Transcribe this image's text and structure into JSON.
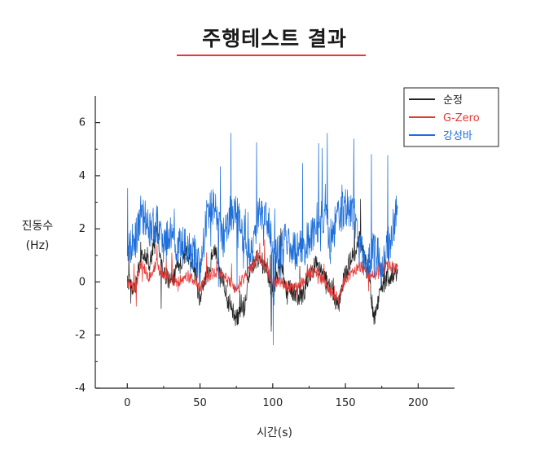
{
  "page": {
    "title": "주행테스트 결과",
    "accent_color": "#e53935"
  },
  "chart_data": {
    "type": "line",
    "xlabel": "시간(s)",
    "ylabel_line1": "진동수",
    "ylabel_line2": "(Hz)",
    "xlim": [
      -22,
      225
    ],
    "ylim": [
      -4,
      7
    ],
    "xticks": [
      0,
      50,
      100,
      150,
      200
    ],
    "yticks": [
      -4,
      -2,
      0,
      2,
      4,
      6
    ],
    "x_range": [
      0,
      186
    ],
    "grid": false,
    "legend_position": "top-right",
    "series": [
      {
        "name": "순정",
        "color": "#222222",
        "anchors": [
          [
            0,
            0
          ],
          [
            5,
            -0.3
          ],
          [
            10,
            1.0
          ],
          [
            15,
            0.7
          ],
          [
            20,
            1.8
          ],
          [
            25,
            0.3
          ],
          [
            30,
            0.0
          ],
          [
            35,
            0.5
          ],
          [
            40,
            1.2
          ],
          [
            45,
            0.7
          ],
          [
            50,
            -0.6
          ],
          [
            55,
            0.3
          ],
          [
            60,
            1.2
          ],
          [
            65,
            0.2
          ],
          [
            70,
            -0.8
          ],
          [
            75,
            -1.4
          ],
          [
            80,
            -1.0
          ],
          [
            85,
            0.6
          ],
          [
            90,
            0.9
          ],
          [
            95,
            0.5
          ],
          [
            100,
            -0.3
          ],
          [
            105,
            0.5
          ],
          [
            110,
            -0.2
          ],
          [
            115,
            -0.4
          ],
          [
            120,
            -0.6
          ],
          [
            125,
            0.2
          ],
          [
            130,
            0.7
          ],
          [
            135,
            0.2
          ],
          [
            140,
            -0.2
          ],
          [
            145,
            -0.9
          ],
          [
            150,
            0.3
          ],
          [
            155,
            1.0
          ],
          [
            160,
            1.6
          ],
          [
            165,
            0.6
          ],
          [
            170,
            -1.3
          ],
          [
            175,
            -0.1
          ],
          [
            180,
            0.2
          ],
          [
            186,
            0.4
          ]
        ],
        "noise": 0.35
      },
      {
        "name": "G-Zero",
        "color": "#e53935",
        "anchors": [
          [
            0,
            0
          ],
          [
            5,
            -0.2
          ],
          [
            10,
            0.6
          ],
          [
            15,
            0.2
          ],
          [
            20,
            0.7
          ],
          [
            25,
            0.3
          ],
          [
            30,
            0.1
          ],
          [
            35,
            0.0
          ],
          [
            40,
            0.2
          ],
          [
            45,
            0.1
          ],
          [
            50,
            -0.2
          ],
          [
            55,
            0.2
          ],
          [
            60,
            0.4
          ],
          [
            65,
            0.3
          ],
          [
            70,
            0.0
          ],
          [
            75,
            -0.3
          ],
          [
            80,
            0.1
          ],
          [
            85,
            0.5
          ],
          [
            90,
            1.0
          ],
          [
            95,
            0.6
          ],
          [
            100,
            0.0
          ],
          [
            105,
            0.0
          ],
          [
            110,
            -0.2
          ],
          [
            115,
            -0.2
          ],
          [
            120,
            0.0
          ],
          [
            125,
            0.3
          ],
          [
            130,
            0.4
          ],
          [
            135,
            0.0
          ],
          [
            140,
            -0.4
          ],
          [
            145,
            -0.6
          ],
          [
            150,
            0.1
          ],
          [
            155,
            0.4
          ],
          [
            160,
            0.6
          ],
          [
            165,
            0.3
          ],
          [
            170,
            0.3
          ],
          [
            175,
            0.5
          ],
          [
            180,
            0.6
          ],
          [
            186,
            0.5
          ]
        ],
        "noise": 0.22
      },
      {
        "name": "강성바",
        "color": "#1e6fd9",
        "anchors": [
          [
            0,
            1.0
          ],
          [
            5,
            1.6
          ],
          [
            10,
            2.6
          ],
          [
            15,
            2.0
          ],
          [
            20,
            2.2
          ],
          [
            25,
            1.4
          ],
          [
            30,
            1.7
          ],
          [
            35,
            1.4
          ],
          [
            40,
            1.3
          ],
          [
            45,
            1.0
          ],
          [
            50,
            0.6
          ],
          [
            55,
            2.5
          ],
          [
            60,
            3.0
          ],
          [
            65,
            1.6
          ],
          [
            70,
            2.4
          ],
          [
            75,
            2.8
          ],
          [
            80,
            1.8
          ],
          [
            85,
            1.1
          ],
          [
            90,
            2.4
          ],
          [
            95,
            2.7
          ],
          [
            100,
            1.4
          ],
          [
            105,
            1.2
          ],
          [
            110,
            1.6
          ],
          [
            115,
            1.2
          ],
          [
            120,
            1.2
          ],
          [
            125,
            1.6
          ],
          [
            130,
            2.2
          ],
          [
            135,
            2.5
          ],
          [
            140,
            1.7
          ],
          [
            145,
            2.4
          ],
          [
            150,
            2.8
          ],
          [
            155,
            2.7
          ],
          [
            160,
            1.3
          ],
          [
            165,
            0.7
          ],
          [
            170,
            1.2
          ],
          [
            175,
            0.9
          ],
          [
            180,
            1.5
          ],
          [
            186,
            2.6
          ]
        ],
        "noise": 0.75
      }
    ]
  }
}
